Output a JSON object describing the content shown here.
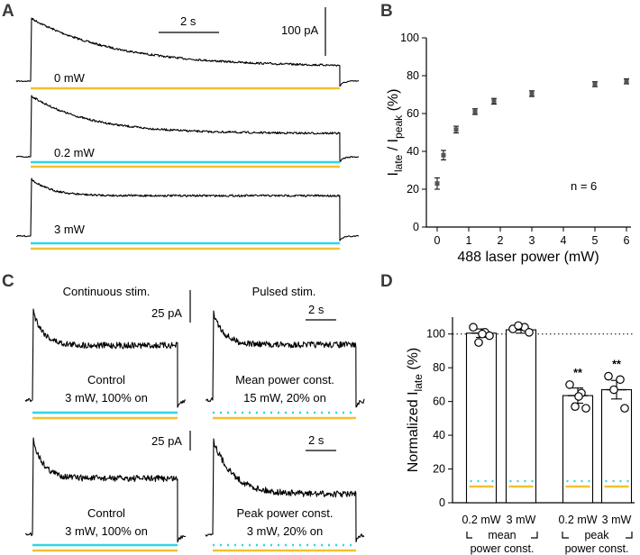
{
  "panel_labels": {
    "A": "A",
    "B": "B",
    "C": "C",
    "D": "D"
  },
  "colors": {
    "cyan": "#2fd6e3",
    "yellow": "#f2c12e",
    "trace": "#000000",
    "marker": "#555555"
  },
  "panelA": {
    "scale_time": "2 s",
    "scale_current": "100 pA",
    "traces": [
      {
        "label": "0 mW",
        "lasers": [
          "yellow"
        ],
        "late_ratio": 0.23
      },
      {
        "label": "0.2 mW",
        "lasers": [
          "cyan",
          "yellow"
        ],
        "late_ratio": 0.38
      },
      {
        "label": "3 mW",
        "lasers": [
          "cyan",
          "yellow"
        ],
        "late_ratio": 0.7
      }
    ]
  },
  "panelC": {
    "col_titles": [
      "Continuous stim.",
      "Pulsed stim."
    ],
    "scale_current_top": "25 pA",
    "scale_time_top": "2 s",
    "scale_current_bottom": "25 pA",
    "scale_time_bottom": "2 s",
    "cells": [
      {
        "line1": "Control",
        "line2": "3 mW, 100% on",
        "cyan": "solid",
        "late_ratio": 0.6
      },
      {
        "line1": "Mean power const.",
        "line2": "15 mW, 20% on",
        "cyan": "dotted",
        "late_ratio": 0.62
      },
      {
        "line1": "Control",
        "line2": "3 mW, 100% on",
        "cyan": "solid",
        "late_ratio": 0.58
      },
      {
        "line1": "Peak power const.",
        "line2": "3 mW, 20% on",
        "cyan": "dotted",
        "late_ratio": 0.42
      }
    ]
  },
  "panelD_text": {
    "x_tick_labels": [
      "0.2 mW",
      "3 mW",
      "0.2 mW",
      "3 mW"
    ],
    "group_labels": [
      [
        "mean",
        "power const."
      ],
      [
        "peak",
        "power const."
      ]
    ],
    "significance": [
      "**",
      "**"
    ]
  },
  "chart_data": [
    {
      "type": "scatter",
      "panel": "B",
      "x": [
        0,
        0.2,
        0.6,
        1.2,
        1.8,
        3,
        5,
        6
      ],
      "y": [
        23,
        38,
        51.5,
        61,
        66.5,
        70.5,
        75.5,
        77
      ],
      "err": [
        3,
        2.5,
        1.8,
        1.5,
        1.5,
        1.5,
        1.3,
        1.3
      ],
      "xlabel": "488 laser power (mW)",
      "ylabel_main": "I",
      "ylabel_sub1": "late",
      "ylabel_mid": " / I",
      "ylabel_sub2": "peak",
      "ylabel_end": " (%)",
      "annotation": "n = 6",
      "xlim": [
        -0.5,
        6.5
      ],
      "ylim": [
        0,
        100
      ],
      "xticks": [
        0,
        1,
        2,
        3,
        4,
        5,
        6
      ],
      "yticks": [
        0,
        20,
        40,
        60,
        80,
        100
      ]
    },
    {
      "type": "bar",
      "panel": "D",
      "categories": [
        "0.2 mW",
        "3 mW",
        "0.2 mW",
        "3 mW"
      ],
      "values": [
        100.5,
        102.5,
        63.5,
        67
      ],
      "err": [
        2.5,
        2,
        4.5,
        5.5
      ],
      "points": [
        [
          104,
          101,
          99,
          95,
          100
        ],
        [
          103,
          104,
          101,
          105
        ],
        [
          70,
          65,
          56,
          57,
          63
        ],
        [
          75,
          73,
          56,
          67
        ]
      ],
      "reference_line": 100,
      "ylabel_main": "Normalized I",
      "ylabel_sub": "late",
      "ylabel_end": " (%)",
      "ylim": [
        0,
        110
      ],
      "yticks": [
        0,
        20,
        40,
        60,
        80,
        100
      ]
    }
  ]
}
